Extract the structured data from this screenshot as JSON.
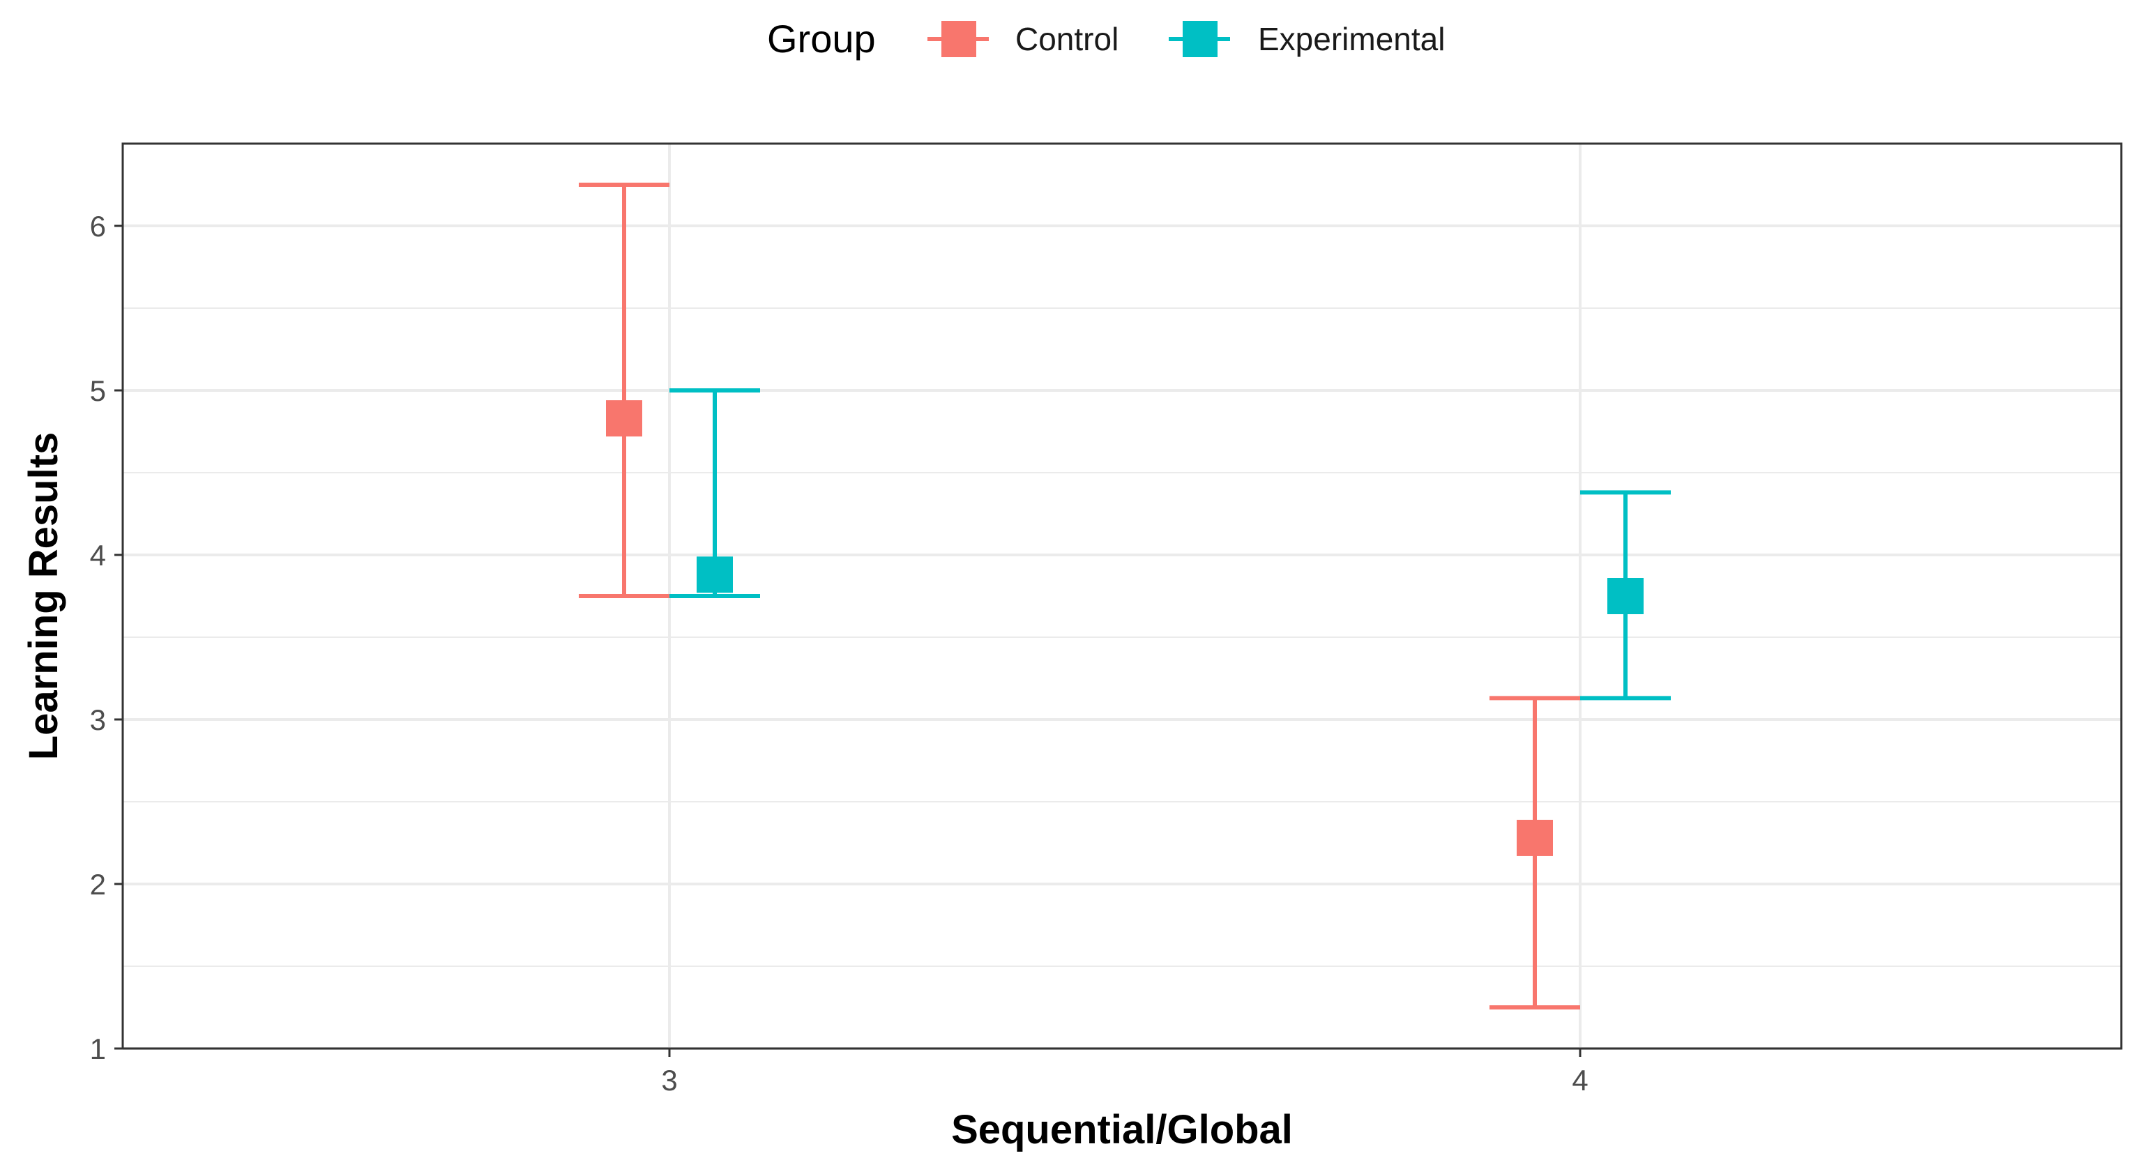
{
  "chart_data": {
    "type": "errorbar",
    "xlabel": "Sequential/Global",
    "ylabel": "Learning Results",
    "categories": [
      "3",
      "4"
    ],
    "ylim": [
      1,
      6.5
    ],
    "yticks": [
      1,
      2,
      3,
      4,
      5,
      6
    ],
    "grid": true,
    "legend": {
      "title": "Group",
      "position": "top",
      "entries": [
        "Control",
        "Experimental"
      ]
    },
    "series": [
      {
        "name": "Control",
        "color": "#F8766D",
        "points": [
          {
            "x": "3",
            "y": 4.83,
            "ymin": 3.75,
            "ymax": 6.25
          },
          {
            "x": "4",
            "y": 2.28,
            "ymin": 1.25,
            "ymax": 3.13
          }
        ]
      },
      {
        "name": "Experimental",
        "color": "#00BFC4",
        "points": [
          {
            "x": "3",
            "y": 3.88,
            "ymin": 3.75,
            "ymax": 5.0
          },
          {
            "x": "4",
            "y": 3.75,
            "ymin": 3.13,
            "ymax": 4.38
          }
        ]
      }
    ]
  }
}
